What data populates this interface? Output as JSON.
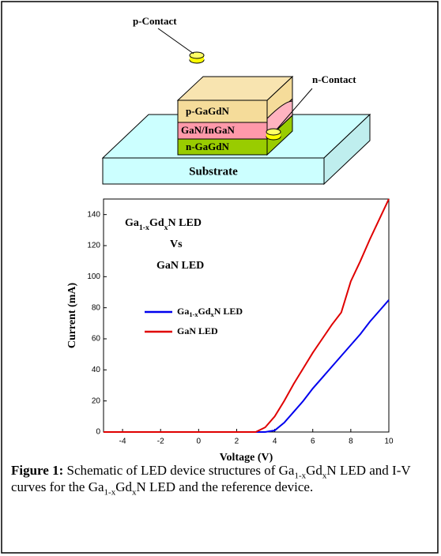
{
  "schematic": {
    "p_contact": "p-Contact",
    "n_contact": "n-Contact",
    "layers": [
      "p-GaGdN",
      "GaN/InGaN",
      "n-GaGdN"
    ],
    "substrate": "Substrate"
  },
  "chart_data": {
    "type": "line",
    "annotations": [
      "Ga1-xGdxN LED",
      "Vs",
      "GaN LED"
    ],
    "x_label": "Voltage (V)",
    "y_label": "Current (mA)",
    "x": [
      -5,
      0,
      3,
      3.5,
      4,
      4.5,
      5,
      5.5,
      6,
      6.5,
      7,
      7.5,
      8,
      8.5,
      9,
      9.5,
      10
    ],
    "series": [
      {
        "name": "Ga1-xGdxN LED",
        "color": "#0000ee",
        "values": [
          0,
          0,
          0,
          0,
          1,
          6,
          13,
          20,
          28,
          35,
          42,
          49,
          56,
          63,
          71,
          78,
          85
        ]
      },
      {
        "name": "GaN LED",
        "color": "#e00000",
        "values": [
          0,
          0,
          0,
          3,
          10,
          20,
          31,
          41,
          51,
          60,
          69,
          77,
          97,
          110,
          124,
          137,
          150
        ]
      }
    ],
    "xlim": [
      -5,
      10
    ],
    "xticks": [
      -4,
      -2,
      0,
      2,
      4,
      6,
      8,
      10
    ],
    "ylim": [
      0,
      150
    ],
    "yticks": [
      0,
      20,
      40,
      60,
      80,
      100,
      120,
      140
    ],
    "grid": false
  },
  "caption": {
    "label": "Figure 1:",
    "text": "Schematic of LED device structures of Ga1-xGdxN LED and I-V curves for the Ga1-xGdxN LED and the reference device."
  }
}
